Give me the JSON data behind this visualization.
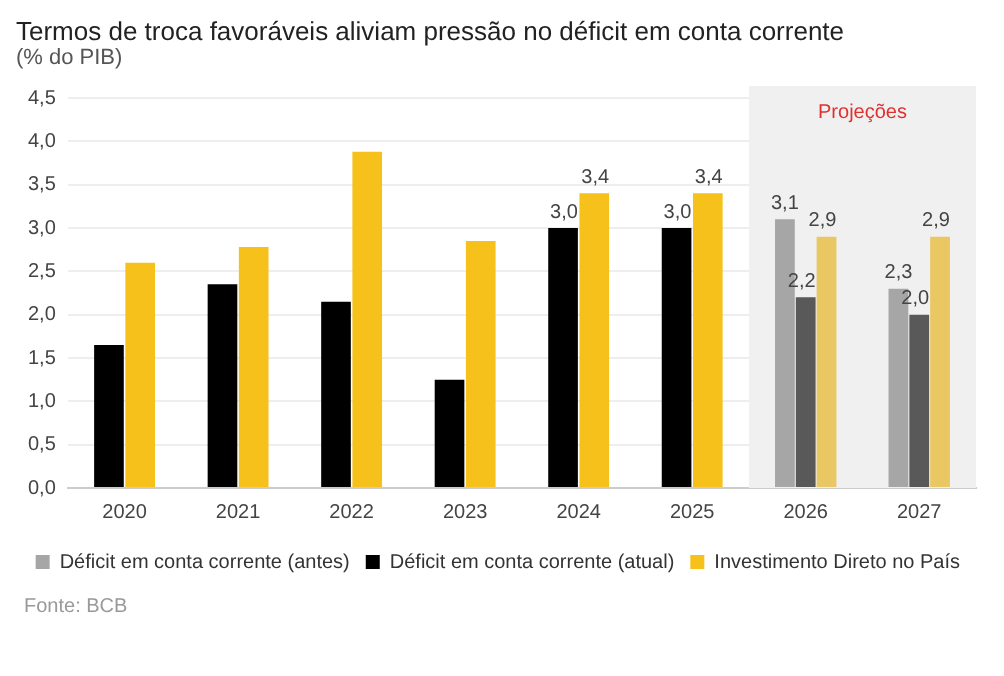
{
  "chart_data": {
    "type": "bar",
    "title": "Termos de troca favoráveis aliviam pressão no déficit em conta corrente",
    "subtitle": "(% do PIB)",
    "categories": [
      "2020",
      "2021",
      "2022",
      "2023",
      "2024",
      "2025",
      "2026",
      "2027"
    ],
    "series": [
      {
        "name": "Déficit em conta corrente (antes)",
        "color": "#a6a6a6",
        "values": [
          null,
          null,
          null,
          null,
          null,
          null,
          3.1,
          2.3
        ],
        "value_labels": [
          null,
          null,
          null,
          null,
          null,
          null,
          "3,1",
          "2,3"
        ]
      },
      {
        "name": "Déficit em conta corrente (atual)",
        "color": "#000000",
        "colors": [
          "#000000",
          "#000000",
          "#000000",
          "#000000",
          "#000000",
          "#000000",
          "#595959",
          "#595959"
        ],
        "values": [
          1.65,
          2.35,
          2.15,
          1.25,
          3.0,
          3.0,
          2.2,
          2.0
        ],
        "value_labels": [
          null,
          null,
          null,
          null,
          "3,0",
          "3,0",
          "2,2",
          "2,0"
        ]
      },
      {
        "name": "Investimento Direto no País",
        "color": "#f5c11a",
        "colors": [
          "#f5c11a",
          "#f5c11a",
          "#f5c11a",
          "#f5c11a",
          "#f5c11a",
          "#f5c11a",
          "#e9c863",
          "#e9c863"
        ],
        "values": [
          2.6,
          2.78,
          3.88,
          2.85,
          3.4,
          3.4,
          2.9,
          2.9
        ],
        "value_labels": [
          null,
          null,
          null,
          null,
          "3,4",
          "3,4",
          "2,9",
          "2,9"
        ]
      }
    ],
    "ylim": [
      0,
      4.5
    ],
    "yticks": [
      {
        "value": 0,
        "label": "0,0"
      },
      {
        "value": 0.5,
        "label": "0,5"
      },
      {
        "value": 1,
        "label": "1,0"
      },
      {
        "value": 1.5,
        "label": "1,5"
      },
      {
        "value": 2,
        "label": "2,0"
      },
      {
        "value": 2.5,
        "label": "2,5"
      },
      {
        "value": 3,
        "label": "3,0"
      },
      {
        "value": 3.5,
        "label": "3,5"
      },
      {
        "value": 4,
        "label": "4,0"
      },
      {
        "value": 4.5,
        "label": "4,5"
      }
    ],
    "grid": "y",
    "legend": "bottom",
    "bands": [
      {
        "axis": "x",
        "from": "2026",
        "to": "2027",
        "label": "Projeções",
        "color": "#f0f0f0"
      }
    ],
    "annotations": [
      "Fonte: BCB"
    ]
  }
}
